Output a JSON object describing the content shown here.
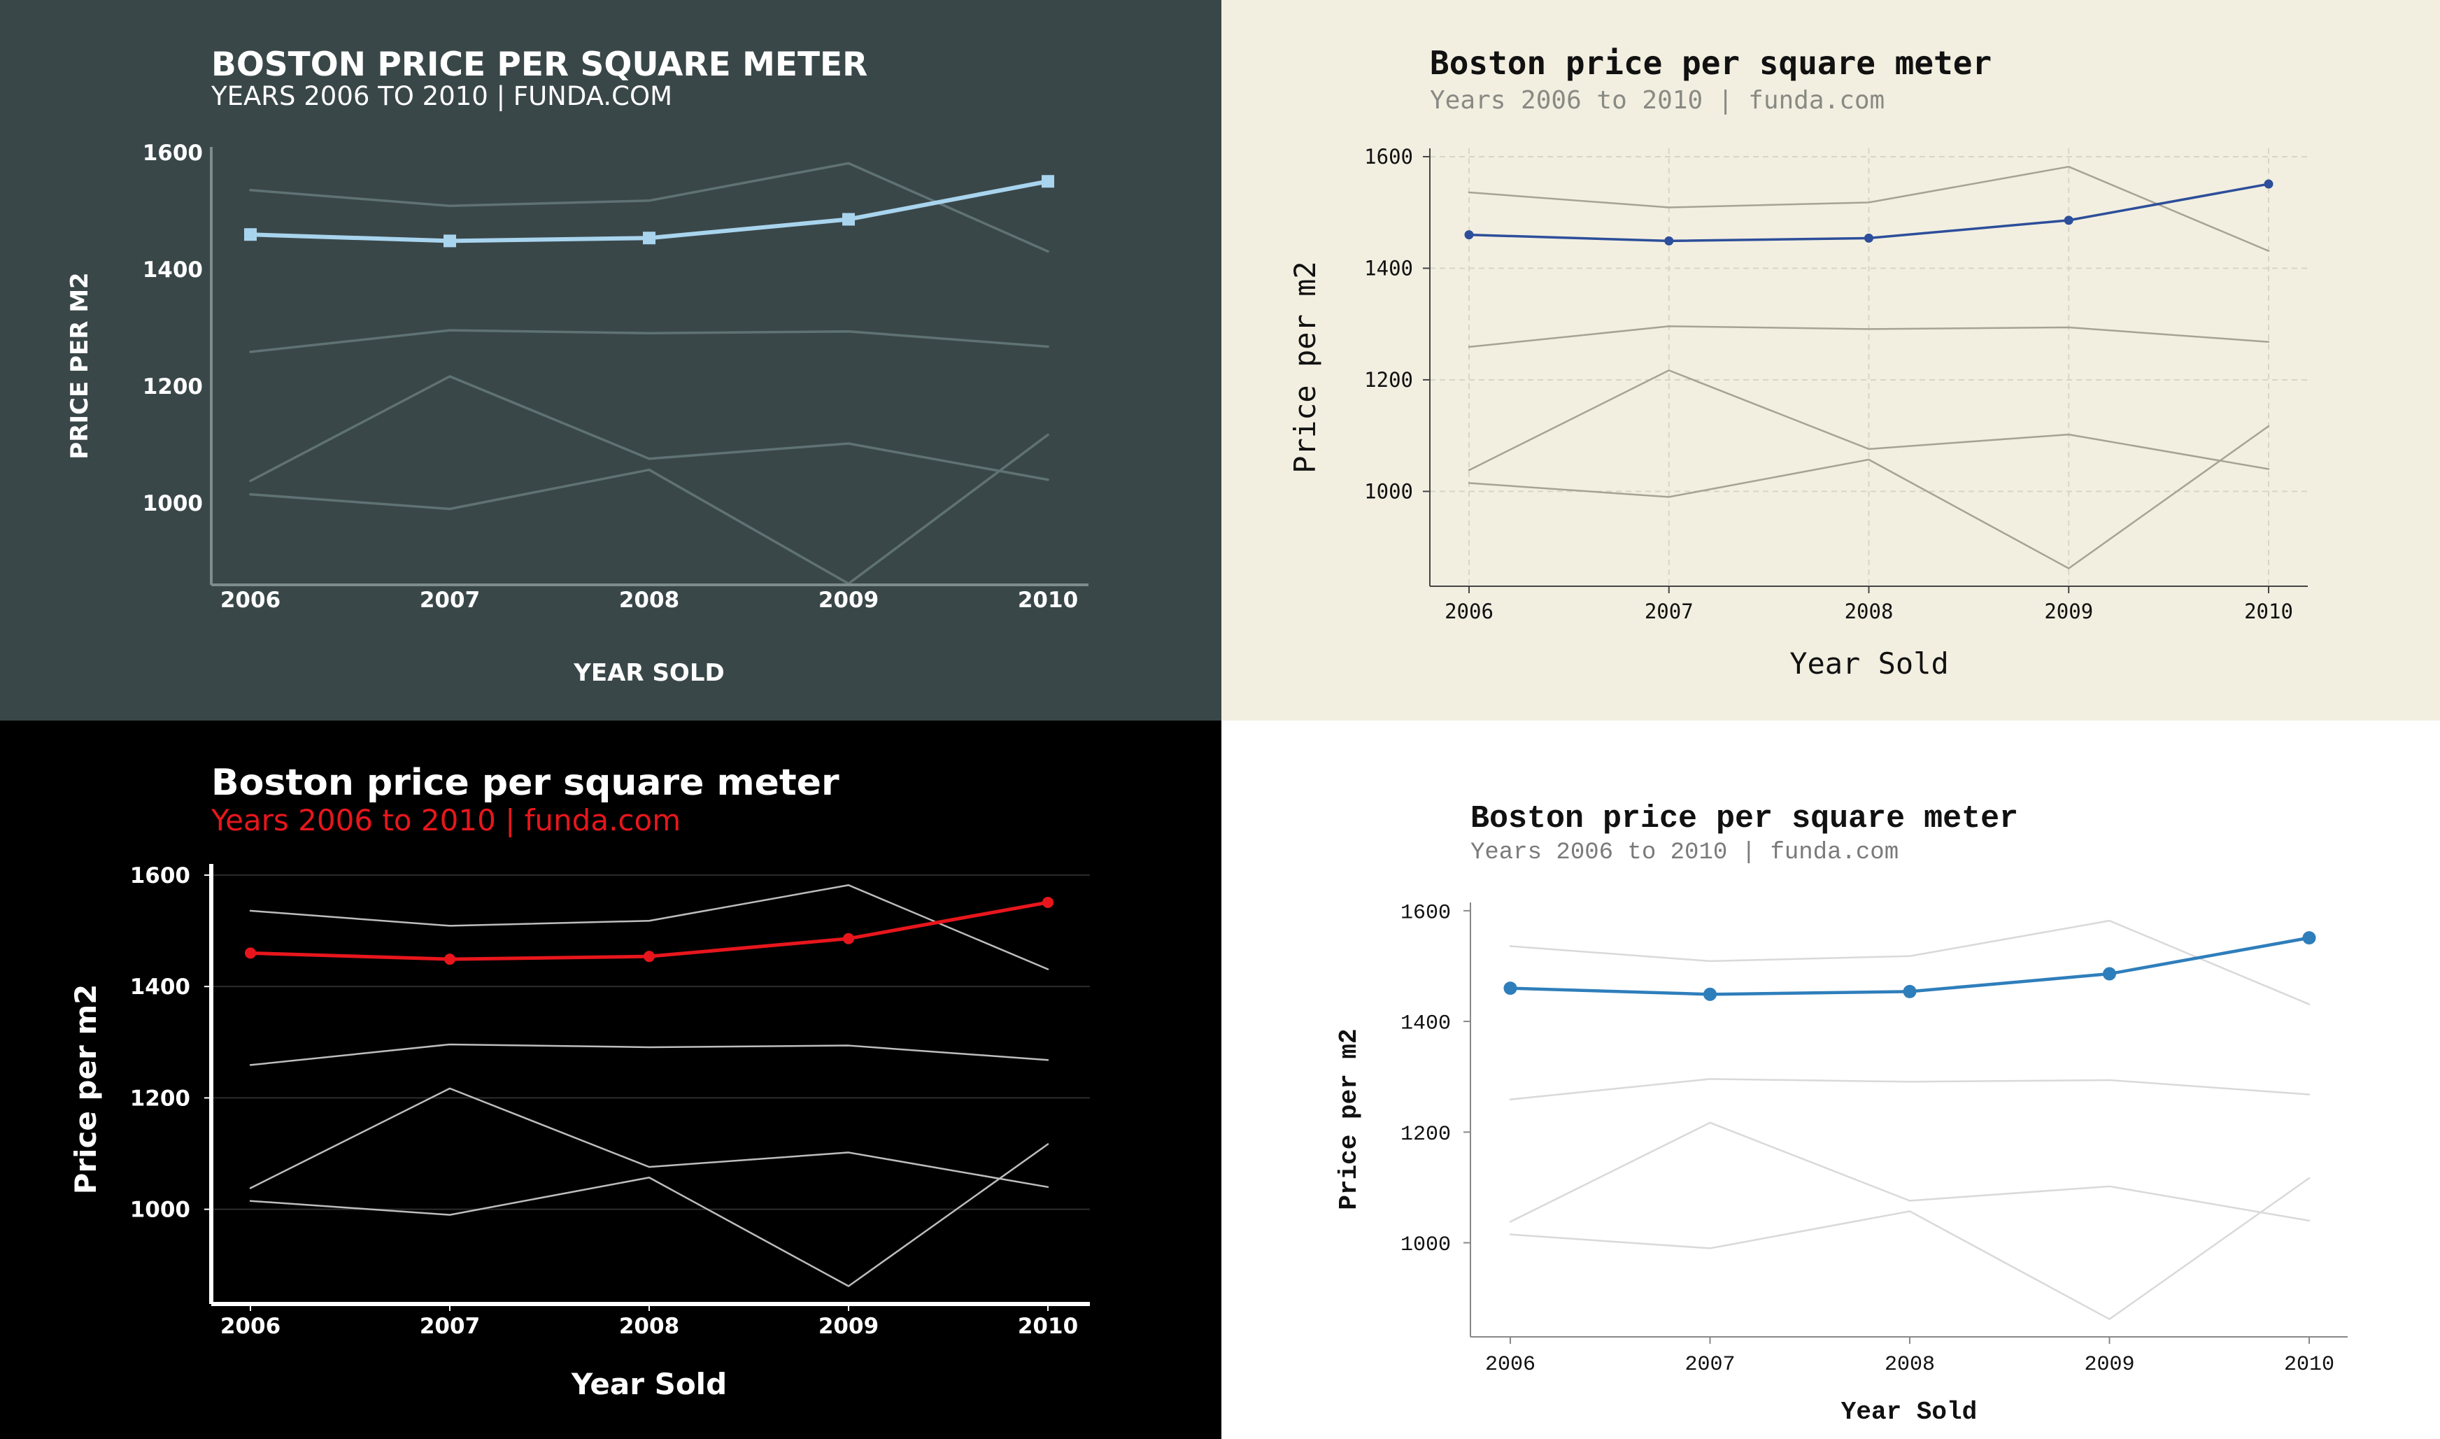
{
  "chart_data": [
    {
      "type": "line",
      "title": "BOSTON PRICE PER SQUARE METER",
      "subtitle": "YEARS 2006 TO 2010 | FUNDA.COM",
      "xlabel": "YEAR SOLD",
      "ylabel": "PRICE PER M2",
      "x": [
        "2006",
        "2007",
        "2008",
        "2009",
        "2010"
      ],
      "yticks": [
        "1000",
        "1200",
        "1400",
        "1600"
      ],
      "ylim": [
        860,
        1610
      ],
      "grid": false,
      "marker": "square",
      "colors": {
        "bg": "#3a4749",
        "text": "#ffffff",
        "axis": "#7f8c8e",
        "highlight": "#a8d4ee",
        "context": "#5f7274"
      },
      "series": [
        {
          "values": [
            1460,
            1449,
            1454,
            1486,
            1551
          ],
          "highlight": true
        },
        {
          "values": [
            1536,
            1509,
            1518,
            1582,
            1431
          ]
        },
        {
          "values": [
            1259,
            1296,
            1291,
            1294,
            1268
          ]
        },
        {
          "values": [
            1038,
            1217,
            1076,
            1102,
            1040
          ]
        },
        {
          "values": [
            1015,
            990,
            1057,
            862,
            1117
          ]
        }
      ]
    },
    {
      "type": "line",
      "title": "Boston price per square meter",
      "subtitle": "Years 2006 to 2010 | funda.com",
      "xlabel": "Year Sold",
      "ylabel": "Price per m2",
      "x": [
        "2006",
        "2007",
        "2008",
        "2009",
        "2010"
      ],
      "yticks": [
        "1000",
        "1200",
        "1400",
        "1600"
      ],
      "ylim": [
        830,
        1615
      ],
      "grid": true,
      "marker": "circle",
      "colors": {
        "bg": "#f2efe1",
        "text": "#111111",
        "subtext": "#8a8a84",
        "axis": "#444444",
        "highlight": "#2d4e9a",
        "context": "#a6a394",
        "gridline": "#d9d5c4"
      },
      "series": [
        {
          "values": [
            1460,
            1449,
            1454,
            1486,
            1551
          ],
          "highlight": true
        },
        {
          "values": [
            1536,
            1509,
            1518,
            1582,
            1431
          ]
        },
        {
          "values": [
            1259,
            1296,
            1291,
            1294,
            1268
          ]
        },
        {
          "values": [
            1038,
            1217,
            1076,
            1102,
            1040
          ]
        },
        {
          "values": [
            1015,
            990,
            1057,
            862,
            1117
          ]
        }
      ]
    },
    {
      "type": "line",
      "title": "Boston price per square meter",
      "subtitle": "Years 2006 to 2010 | funda.com",
      "xlabel": "Year Sold",
      "ylabel": "Price per m2",
      "x": [
        "2006",
        "2007",
        "2008",
        "2009",
        "2010"
      ],
      "yticks": [
        "1000",
        "1200",
        "1400",
        "1600"
      ],
      "ylim": [
        830,
        1620
      ],
      "grid": true,
      "marker": "circle",
      "colors": {
        "bg": "#000000",
        "text": "#ffffff",
        "subtext": "#e8161c",
        "axis": "#ffffff",
        "highlight": "#e8161c",
        "context": "#bdbdbd",
        "gridline": "#2c2c2c"
      },
      "series": [
        {
          "values": [
            1460,
            1449,
            1454,
            1486,
            1551
          ],
          "highlight": true
        },
        {
          "values": [
            1536,
            1509,
            1518,
            1582,
            1431
          ]
        },
        {
          "values": [
            1259,
            1296,
            1291,
            1294,
            1268
          ]
        },
        {
          "values": [
            1038,
            1217,
            1076,
            1102,
            1040
          ]
        },
        {
          "values": [
            1015,
            990,
            1057,
            862,
            1117
          ]
        }
      ]
    },
    {
      "type": "line",
      "title": "Boston price per square meter",
      "subtitle": "Years 2006 to 2010 | funda.com",
      "xlabel": "Year Sold",
      "ylabel": "Price per m2",
      "x": [
        "2006",
        "2007",
        "2008",
        "2009",
        "2010"
      ],
      "yticks": [
        "1000",
        "1200",
        "1400",
        "1600"
      ],
      "ylim": [
        830,
        1615
      ],
      "grid": false,
      "marker": "circle",
      "colors": {
        "bg": "#ffffff",
        "text": "#111111",
        "subtext": "#7a7a7a",
        "axis": "#888888",
        "highlight": "#2e7ebb",
        "context": "#d9d9d9"
      },
      "series": [
        {
          "values": [
            1460,
            1449,
            1454,
            1486,
            1551
          ],
          "highlight": true
        },
        {
          "values": [
            1536,
            1509,
            1518,
            1582,
            1431
          ]
        },
        {
          "values": [
            1259,
            1296,
            1291,
            1294,
            1268
          ]
        },
        {
          "values": [
            1038,
            1217,
            1076,
            1102,
            1040
          ]
        },
        {
          "values": [
            1015,
            990,
            1057,
            862,
            1117
          ]
        }
      ]
    }
  ]
}
